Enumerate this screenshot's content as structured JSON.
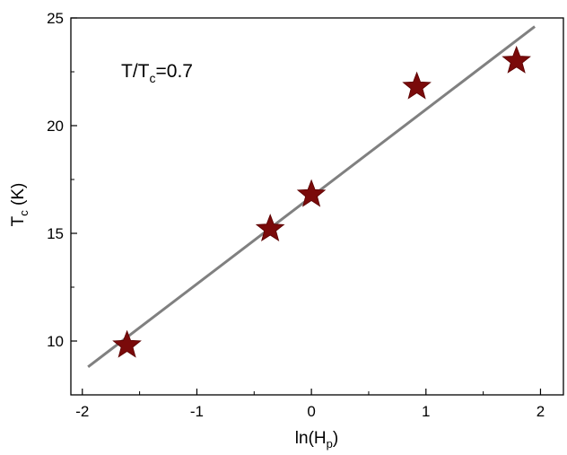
{
  "chart_data": {
    "type": "scatter",
    "annotation": {
      "main": "T/T",
      "sub": "c",
      "rest": "=0.7"
    },
    "xlabel": {
      "main": "ln(H",
      "sub": "p",
      "rest": ")"
    },
    "ylabel": {
      "main": "T",
      "sub": "c",
      "rest": " (K)"
    },
    "xlim": [
      -2.1,
      2.2
    ],
    "ylim": [
      7.5,
      25
    ],
    "xticks": [
      -2,
      -1,
      0,
      1,
      2
    ],
    "yticks": [
      10,
      15,
      20,
      25
    ],
    "xtick_labels": [
      "-2",
      "-1",
      "0",
      "1",
      "2"
    ],
    "ytick_labels": [
      "10",
      "15",
      "20",
      "25"
    ],
    "grid": false,
    "legend": "none",
    "series": [
      {
        "type": "scatter",
        "marker": "star",
        "color": "#7a0a0a",
        "x": [
          -1.61,
          -0.36,
          0.0,
          0.92,
          1.79
        ],
        "y": [
          9.8,
          15.2,
          16.8,
          21.8,
          23.0
        ]
      },
      {
        "type": "line",
        "fit": "linear",
        "color": "#808080",
        "x": [
          -1.95,
          1.95
        ],
        "y": [
          8.8,
          24.6
        ]
      }
    ]
  }
}
